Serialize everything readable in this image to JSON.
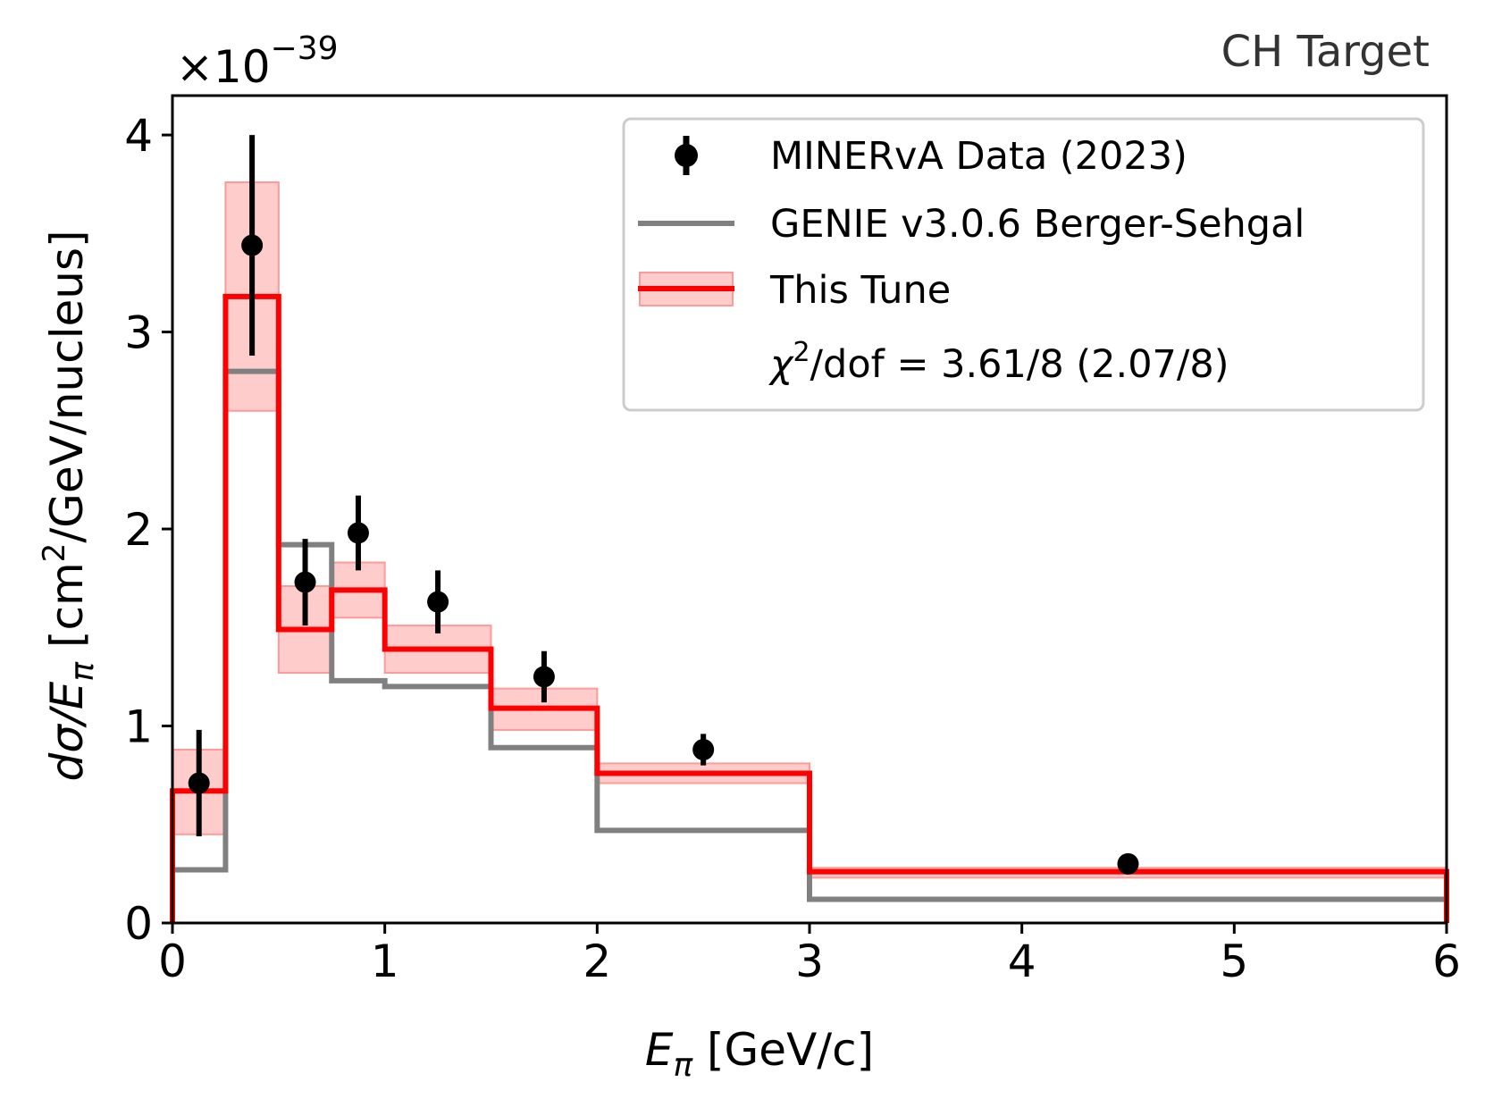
{
  "chart_data": {
    "type": "line",
    "title": "",
    "corner_label": "CH Target",
    "xlabel_main": "E",
    "xlabel_sub": "π",
    "xlabel_unit": " [GeV/c]",
    "ylabel_pre": "dσ/E",
    "ylabel_sub": "π",
    "ylabel_unit_a": " [cm",
    "ylabel_unit_sup": "2",
    "ylabel_unit_b": "/GeV/nucleus]",
    "y_multiplier_base": "×10",
    "y_multiplier_exp": "−39",
    "xlim": [
      0,
      6
    ],
    "ylim": [
      0,
      4.2
    ],
    "xticks": [
      "0",
      "1",
      "2",
      "3",
      "4",
      "5",
      "6"
    ],
    "yticks": [
      "0",
      "1",
      "2",
      "3",
      "4"
    ],
    "bin_edges": [
      0,
      0.25,
      0.5,
      0.75,
      1.0,
      1.5,
      2.0,
      3.0,
      6.0
    ],
    "series": [
      {
        "name": "MINERvA Data (2023)",
        "kind": "errorbar",
        "color": "#000000",
        "x": [
          0.125,
          0.375,
          0.625,
          0.875,
          1.25,
          1.75,
          2.5,
          4.5
        ],
        "y": [
          0.71,
          3.44,
          1.73,
          1.98,
          1.63,
          1.25,
          0.88,
          0.3
        ],
        "yerr": [
          0.27,
          0.56,
          0.22,
          0.19,
          0.16,
          0.13,
          0.08,
          0.03
        ]
      },
      {
        "name": "GENIE v3.0.6 Berger-Sehgal",
        "kind": "step",
        "color": "#808080",
        "values": [
          0.27,
          2.8,
          1.92,
          1.23,
          1.2,
          0.89,
          0.47,
          0.12
        ]
      },
      {
        "name": "This Tune",
        "kind": "step_band",
        "color": "#ff0000",
        "band_color": "#ff9a9a",
        "values": [
          0.67,
          3.18,
          1.49,
          1.69,
          1.39,
          1.09,
          0.76,
          0.26
        ],
        "band_low": [
          0.45,
          2.6,
          1.27,
          1.55,
          1.27,
          0.98,
          0.71,
          0.23
        ],
        "band_high": [
          0.88,
          3.76,
          1.71,
          1.83,
          1.51,
          1.19,
          0.81,
          0.28
        ]
      }
    ],
    "legend": {
      "placement": "upper-right",
      "extra_pre": "χ",
      "extra_sup": "2",
      "extra_post": "/dof = 3.61/8 (2.07/8)"
    },
    "grid": false
  }
}
